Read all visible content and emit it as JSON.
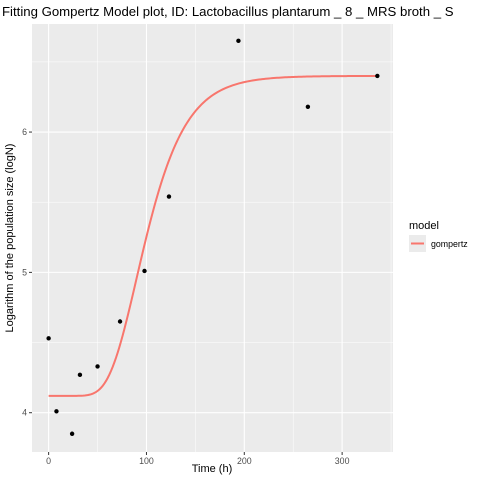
{
  "chart_data": {
    "type": "scatter",
    "title": "Fitting Gompertz Model plot, ID: Lactobacillus plantarum _ 8 _ MRS broth _ S",
    "xlabel": "Time (h)",
    "ylabel": "Logarithm of the population size (logN)",
    "xlim": [
      -17,
      352
    ],
    "ylim": [
      3.72,
      6.77
    ],
    "x_ticks": [
      0,
      100,
      200,
      300
    ],
    "x_tick_labels": [
      "0",
      "100",
      "200",
      "300"
    ],
    "y_ticks": [
      4,
      5,
      6
    ],
    "y_tick_labels": [
      "4",
      "5",
      "6"
    ],
    "grid": true,
    "legend": {
      "title": "model",
      "position": "right",
      "entries": [
        "gompertz"
      ]
    },
    "points": {
      "x": [
        0,
        8,
        24,
        32,
        50,
        73,
        98,
        123,
        194,
        265,
        336
      ],
      "y": [
        4.53,
        4.01,
        3.85,
        4.27,
        4.33,
        4.65,
        5.01,
        5.54,
        6.65,
        6.18,
        6.4
      ]
    },
    "series": [
      {
        "name": "gompertz",
        "color": "#f8766d",
        "model": {
          "y0": 4.12,
          "ymax": 6.4,
          "mumax": 0.03,
          "lag": 62
        },
        "x_range": [
          0,
          336
        ]
      }
    ]
  }
}
